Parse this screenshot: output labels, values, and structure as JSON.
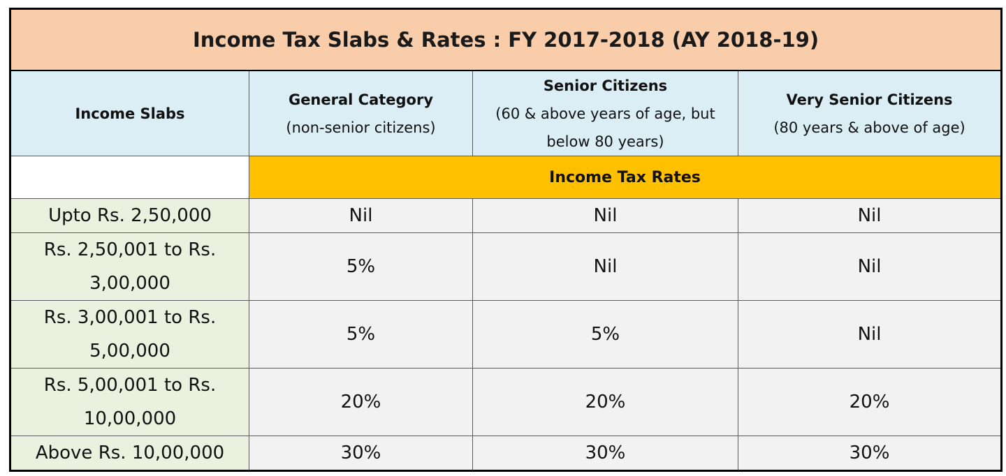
{
  "title": "Income Tax Slabs & Rates : FY 2017-2018 (AY 2018-19)",
  "columns": {
    "slabs": {
      "label": "Income Slabs"
    },
    "general": {
      "label": "General Category",
      "sub": "(non-senior citizens)"
    },
    "senior": {
      "label": "Senior Citizens",
      "sub_line1": "(60 & above years of age, but",
      "sub_line2": "below 80 years)"
    },
    "very_senior": {
      "label": "Very Senior Citizens",
      "sub": "(80 years & above of age)"
    }
  },
  "rates_header": "Income Tax Rates",
  "rows": [
    {
      "slab_line1": "Upto Rs. 2,50,000",
      "slab_line2": "",
      "general": "Nil",
      "senior": "Nil",
      "very_senior": "Nil"
    },
    {
      "slab_line1": "Rs. 2,50,001 to Rs.",
      "slab_line2": "3,00,000",
      "general": "5%",
      "senior": "Nil",
      "very_senior": "Nil"
    },
    {
      "slab_line1": "Rs. 3,00,001 to Rs.",
      "slab_line2": "5,00,000",
      "general": "5%",
      "senior": "5%",
      "very_senior": "Nil"
    },
    {
      "slab_line1": "Rs. 5,00,001 to Rs.",
      "slab_line2": "10,00,000",
      "general": "20%",
      "senior": "20%",
      "very_senior": "20%"
    },
    {
      "slab_line1": "Above Rs. 10,00,000",
      "slab_line2": "",
      "general": "30%",
      "senior": "30%",
      "very_senior": "30%"
    }
  ]
}
